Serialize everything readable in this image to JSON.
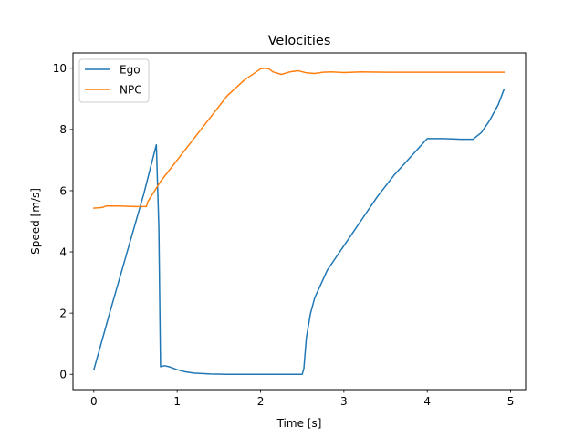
{
  "chart_data": {
    "type": "line",
    "title": "Velocities",
    "xlabel": "Time [s]",
    "ylabel": "Speed [m/s]",
    "xlim": [
      -0.25,
      5.18
    ],
    "ylim": [
      -0.5,
      10.5
    ],
    "xticks": [
      0,
      1,
      2,
      3,
      4,
      5
    ],
    "yticks": [
      0,
      2,
      4,
      6,
      8,
      10
    ],
    "grid": false,
    "legend": "upper left",
    "series": [
      {
        "name": "Ego",
        "color": "#1f77b4",
        "x": [
          0.0,
          0.2,
          0.4,
          0.6,
          0.75,
          0.78,
          0.8,
          0.85,
          0.9,
          1.0,
          1.1,
          1.2,
          1.4,
          1.6,
          1.8,
          2.0,
          2.2,
          2.4,
          2.5,
          2.52,
          2.55,
          2.6,
          2.65,
          2.7,
          2.8,
          2.9,
          3.0,
          3.1,
          3.2,
          3.4,
          3.6,
          3.8,
          4.0,
          4.2,
          4.4,
          4.55,
          4.65,
          4.75,
          4.85,
          4.92
        ],
        "y": [
          0.15,
          2.1,
          4.0,
          5.9,
          7.5,
          4.8,
          0.25,
          0.28,
          0.25,
          0.15,
          0.08,
          0.04,
          0.01,
          0.0,
          0.0,
          0.0,
          0.0,
          0.0,
          0.0,
          0.2,
          1.2,
          2.0,
          2.5,
          2.8,
          3.4,
          3.8,
          4.2,
          4.6,
          5.0,
          5.8,
          6.5,
          7.1,
          7.7,
          7.7,
          7.68,
          7.68,
          7.9,
          8.3,
          8.8,
          9.3
        ]
      },
      {
        "name": "NPC",
        "color": "#ff7f0e",
        "x": [
          0.0,
          0.1,
          0.15,
          0.3,
          0.5,
          0.63,
          0.65,
          0.8,
          1.0,
          1.2,
          1.4,
          1.6,
          1.8,
          2.0,
          2.05,
          2.1,
          2.15,
          2.25,
          2.35,
          2.45,
          2.55,
          2.65,
          2.75,
          2.85,
          3.0,
          3.2,
          3.5,
          4.0,
          4.5,
          4.92
        ],
        "y": [
          5.43,
          5.45,
          5.5,
          5.5,
          5.48,
          5.48,
          5.65,
          6.3,
          7.0,
          7.7,
          8.4,
          9.1,
          9.6,
          9.98,
          10.0,
          9.98,
          9.88,
          9.8,
          9.88,
          9.92,
          9.85,
          9.83,
          9.87,
          9.88,
          9.86,
          9.88,
          9.87,
          9.87,
          9.87,
          9.87
        ]
      }
    ]
  }
}
